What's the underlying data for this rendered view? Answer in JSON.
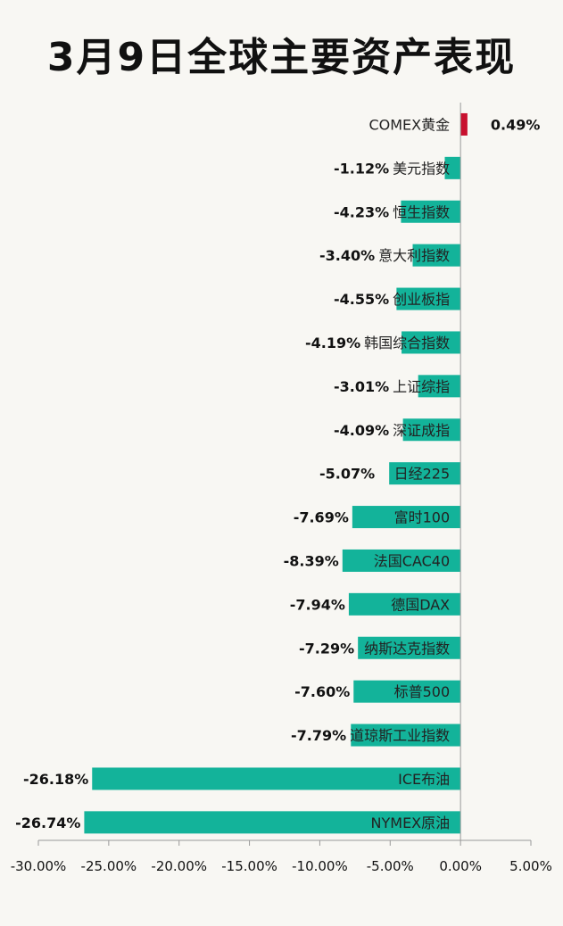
{
  "chart_data": {
    "type": "bar",
    "orientation": "horizontal",
    "title": "3月9日全球主要资产表现",
    "categories": [
      "COMEX黄金",
      "美元指数",
      "恒生指数",
      "意大利指数",
      "创业板指",
      "韩国综合指数",
      "上证综指",
      "深证成指",
      "日经225",
      "富时100",
      "法国CAC40",
      "德国DAX",
      "纳斯达克指数",
      "标普500",
      "道琼斯工业指数",
      "ICE布油",
      "NYMEX原油"
    ],
    "values": [
      0.49,
      -1.12,
      -4.23,
      -3.4,
      -4.55,
      -4.19,
      -3.01,
      -4.09,
      -5.07,
      -7.69,
      -8.39,
      -7.94,
      -7.29,
      -7.6,
      -7.79,
      -26.18,
      -26.74
    ],
    "value_labels": [
      "0.49%",
      "-1.12%",
      "-4.23%",
      "-3.40%",
      "-4.55%",
      "-4.19%",
      "-3.01%",
      "-4.09%",
      "-5.07%",
      "-7.69%",
      "-8.39%",
      "-7.94%",
      "-7.29%",
      "-7.60%",
      "-7.79%",
      "-26.18%",
      "-26.74%"
    ],
    "x_ticks": [
      "-30.00%",
      "-25.00%",
      "-20.00%",
      "-15.00%",
      "-10.00%",
      "-5.00%",
      "0.00%",
      "5.00%"
    ],
    "x_tick_values": [
      -30,
      -25,
      -20,
      -15,
      -10,
      -5,
      0,
      5
    ],
    "xlim": [
      -30,
      5
    ],
    "grid": false,
    "colors": {
      "positive": "#c8102e",
      "negative": "#13b39a"
    }
  }
}
